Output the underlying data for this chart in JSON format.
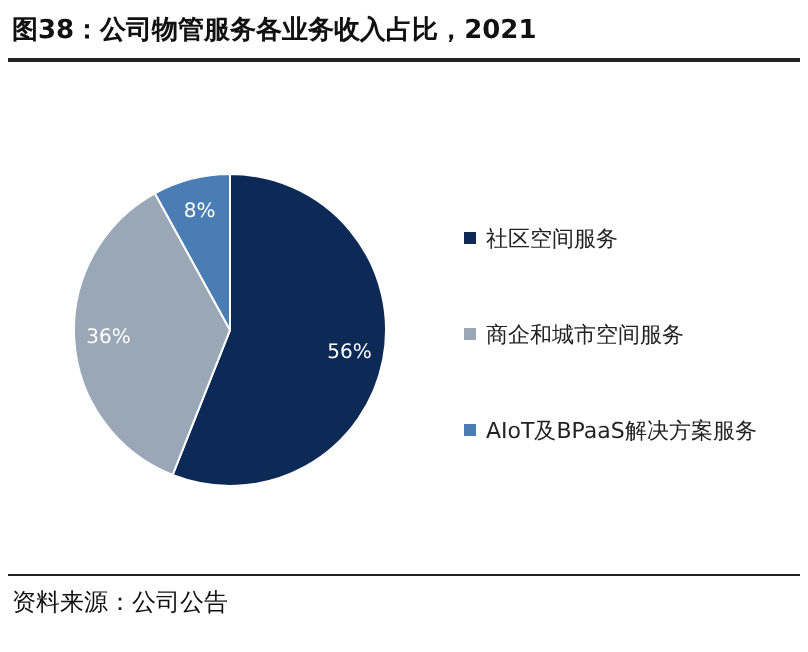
{
  "chart_data": {
    "type": "pie",
    "title": "图38：公司物管服务各业务收入占比，2021",
    "categories": [
      "社区空间服务",
      "商企和城市空间服务",
      "AIoT及BPaaS解决方案服务"
    ],
    "values": [
      56,
      36,
      8
    ],
    "colors": [
      "#0d2a57",
      "#9aa7b6",
      "#4a7db3"
    ],
    "value_labels": [
      "56%",
      "36%",
      "8%"
    ],
    "legend": "right",
    "annotations": [
      "资料来源：公司公告"
    ]
  }
}
